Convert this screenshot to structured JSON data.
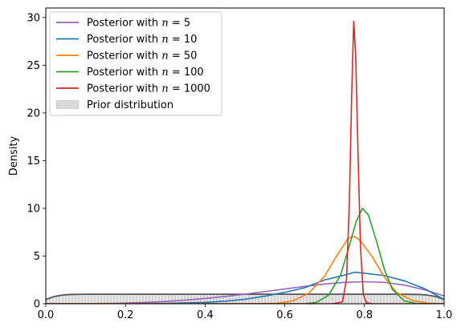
{
  "chart_data": {
    "type": "line",
    "title": "",
    "xlabel": "",
    "ylabel": "Density",
    "xlim": [
      0.0,
      1.0
    ],
    "ylim": [
      0,
      31
    ],
    "grid": false,
    "legend_position": "top-left",
    "x_ticks": [
      "0.0",
      "0.2",
      "0.4",
      "0.6",
      "0.8",
      "1.0"
    ],
    "y_ticks": [
      "0",
      "5",
      "10",
      "15",
      "20",
      "25",
      "30"
    ],
    "series": [
      {
        "name_prefix": "Posterior with ",
        "name_var": "n",
        "name_value": "5",
        "color": "#9467bd",
        "points": [
          [
            0.0,
            0.0
          ],
          [
            0.05,
            0.0
          ],
          [
            0.1,
            0.01
          ],
          [
            0.15,
            0.03
          ],
          [
            0.2,
            0.07
          ],
          [
            0.25,
            0.14
          ],
          [
            0.3,
            0.24
          ],
          [
            0.35,
            0.38
          ],
          [
            0.4,
            0.55
          ],
          [
            0.45,
            0.76
          ],
          [
            0.5,
            1.0
          ],
          [
            0.55,
            1.27
          ],
          [
            0.6,
            1.55
          ],
          [
            0.65,
            1.82
          ],
          [
            0.7,
            2.06
          ],
          [
            0.75,
            2.24
          ],
          [
            0.8,
            2.31
          ],
          [
            0.85,
            2.24
          ],
          [
            0.9,
            1.96
          ],
          [
            0.95,
            1.47
          ],
          [
            1.0,
            0.82
          ]
        ]
      },
      {
        "name_prefix": "Posterior with ",
        "name_var": "n",
        "name_value": "10",
        "color": "#1f77b4",
        "points": [
          [
            0.0,
            0.0
          ],
          [
            0.1,
            0.0
          ],
          [
            0.2,
            0.01
          ],
          [
            0.3,
            0.04
          ],
          [
            0.4,
            0.14
          ],
          [
            0.45,
            0.27
          ],
          [
            0.5,
            0.47
          ],
          [
            0.55,
            0.79
          ],
          [
            0.6,
            1.2
          ],
          [
            0.65,
            1.68
          ],
          [
            0.7,
            2.5
          ],
          [
            0.75,
            3.0
          ],
          [
            0.775,
            3.3
          ],
          [
            0.8,
            3.2
          ],
          [
            0.85,
            2.95
          ],
          [
            0.9,
            2.4
          ],
          [
            0.95,
            1.6
          ],
          [
            1.0,
            0.45
          ]
        ]
      },
      {
        "name_prefix": "Posterior with ",
        "name_var": "n",
        "name_value": "50",
        "color": "#ff7f0e",
        "points": [
          [
            0.0,
            0.0
          ],
          [
            0.5,
            0.0
          ],
          [
            0.58,
            0.05
          ],
          [
            0.62,
            0.3
          ],
          [
            0.66,
            1.1
          ],
          [
            0.7,
            2.9
          ],
          [
            0.73,
            5.0
          ],
          [
            0.76,
            6.9
          ],
          [
            0.775,
            7.05
          ],
          [
            0.79,
            6.6
          ],
          [
            0.82,
            4.9
          ],
          [
            0.85,
            2.8
          ],
          [
            0.88,
            1.2
          ],
          [
            0.92,
            0.35
          ],
          [
            0.96,
            0.06
          ],
          [
            1.0,
            0.0
          ]
        ]
      },
      {
        "name_prefix": "Posterior with ",
        "name_var": "n",
        "name_value": "100",
        "color": "#2ca02c",
        "points": [
          [
            0.0,
            0.0
          ],
          [
            0.65,
            0.0
          ],
          [
            0.68,
            0.15
          ],
          [
            0.71,
            0.9
          ],
          [
            0.74,
            3.0
          ],
          [
            0.76,
            5.8
          ],
          [
            0.78,
            8.7
          ],
          [
            0.795,
            10.0
          ],
          [
            0.81,
            9.3
          ],
          [
            0.83,
            6.6
          ],
          [
            0.85,
            3.6
          ],
          [
            0.87,
            1.5
          ],
          [
            0.9,
            0.3
          ],
          [
            0.93,
            0.03
          ],
          [
            1.0,
            0.0
          ]
        ]
      },
      {
        "name_prefix": "Posterior with ",
        "name_var": "n",
        "name_value": "1000",
        "color": "#d62728",
        "points": [
          [
            0.0,
            0.0
          ],
          [
            0.72,
            0.0
          ],
          [
            0.745,
            0.2
          ],
          [
            0.755,
            2.6
          ],
          [
            0.762,
            10.5
          ],
          [
            0.768,
            22.0
          ],
          [
            0.773,
            29.6
          ],
          [
            0.778,
            26.0
          ],
          [
            0.784,
            15.5
          ],
          [
            0.79,
            6.0
          ],
          [
            0.797,
            1.0
          ],
          [
            0.805,
            0.1
          ],
          [
            0.82,
            0.0
          ],
          [
            1.0,
            0.0
          ]
        ]
      }
    ],
    "prior": {
      "name": "Prior distribution",
      "fill_color": "#d9d9d9",
      "line_color": "#555555",
      "points": [
        [
          0.0,
          0.45
        ],
        [
          0.02,
          0.75
        ],
        [
          0.04,
          0.9
        ],
        [
          0.06,
          0.97
        ],
        [
          0.1,
          1.0
        ],
        [
          0.9,
          1.0
        ],
        [
          0.94,
          0.97
        ],
        [
          0.96,
          0.9
        ],
        [
          0.98,
          0.75
        ],
        [
          1.0,
          0.45
        ]
      ]
    }
  }
}
